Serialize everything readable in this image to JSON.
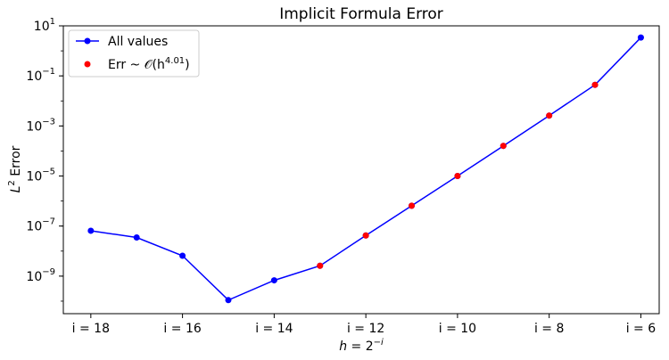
{
  "chart_data": {
    "type": "line",
    "title": "Implicit Formula Error",
    "xlabel": "h = 2^{-i}",
    "ylabel": "L^2 Error",
    "yscale": "log",
    "ylim": [
      1e-10,
      10
    ],
    "x_ticks": [
      {
        "i": 18,
        "label": "i = 18"
      },
      {
        "i": 16,
        "label": "i = 16"
      },
      {
        "i": 14,
        "label": "i = 14"
      },
      {
        "i": 12,
        "label": "i = 12"
      },
      {
        "i": 10,
        "label": "i = 10"
      },
      {
        "i": 8,
        "label": "i = 8"
      },
      {
        "i": 6,
        "label": "i = 6"
      }
    ],
    "y_ticks": [
      {
        "value": 1e-09,
        "label_base": "10",
        "label_exp": "−9"
      },
      {
        "value": 1e-07,
        "label_base": "10",
        "label_exp": "−7"
      },
      {
        "value": 1e-05,
        "label_base": "10",
        "label_exp": "−5"
      },
      {
        "value": 0.001,
        "label_base": "10",
        "label_exp": "−3"
      },
      {
        "value": 0.1,
        "label_base": "10",
        "label_exp": "−1"
      },
      {
        "value": 10,
        "label_base": "10",
        "label_exp": "1"
      }
    ],
    "series": [
      {
        "name": "All values",
        "color": "#0000ff",
        "style": "line-marker",
        "x": [
          18,
          17,
          16,
          15,
          14,
          13,
          12,
          11,
          10,
          9,
          8,
          7,
          6
        ],
        "values": [
          6.5e-08,
          3.5e-08,
          6.5e-09,
          1.1e-10,
          6.8e-10,
          2.6e-09,
          4.2e-08,
          6.5e-07,
          1e-05,
          0.00016,
          0.0026,
          0.044,
          3.4
        ]
      },
      {
        "name": "Err ~ 𝒪(h^{4.01})",
        "color": "#ff0000",
        "style": "marker",
        "x": [
          13,
          12,
          11,
          10,
          9,
          8,
          7
        ],
        "values": [
          2.6e-09,
          4.2e-08,
          6.5e-07,
          1e-05,
          0.00016,
          0.0026,
          0.044
        ]
      }
    ],
    "legend": {
      "location": "upper-left",
      "entries": [
        {
          "label": "All values"
        },
        {
          "label_prefix": "Err ~ 𝒪(h",
          "label_exp": "4.01",
          "label_suffix": ")"
        }
      ]
    },
    "grid": false
  }
}
